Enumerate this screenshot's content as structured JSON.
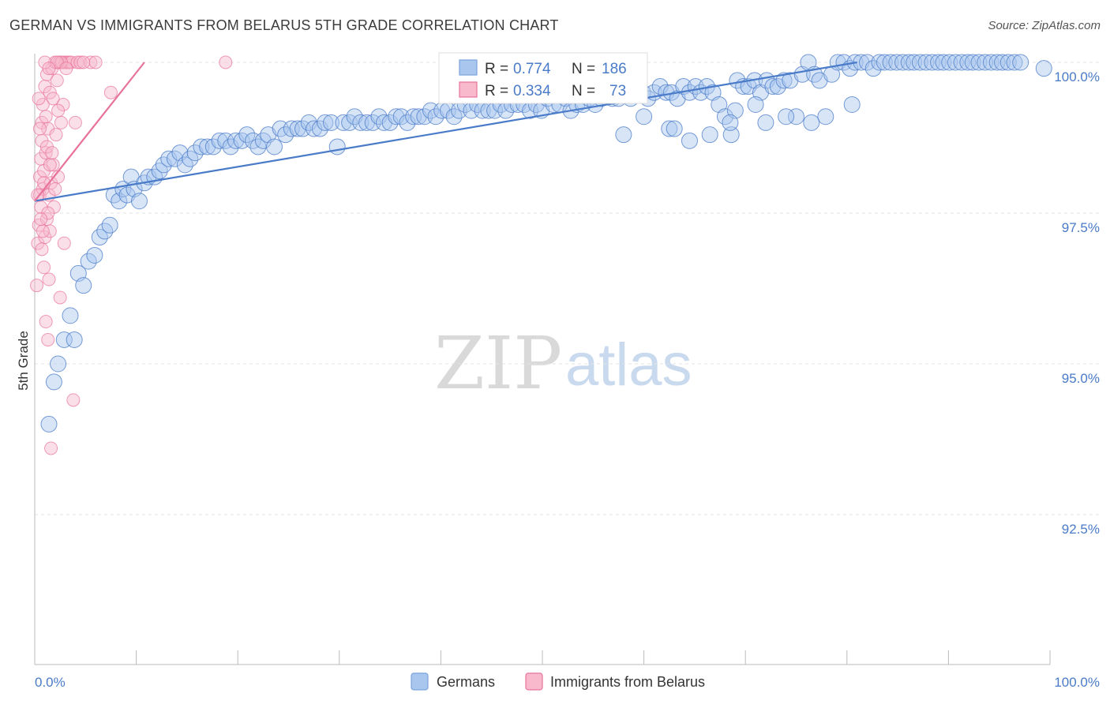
{
  "title": "GERMAN VS IMMIGRANTS FROM BELARUS 5TH GRADE CORRELATION CHART",
  "source": "Source: ZipAtlas.com",
  "watermark": {
    "zip": "ZIP",
    "atlas": "atlas"
  },
  "colors": {
    "blue": "#4a7bc8",
    "blue_fill": "#a9c6ee",
    "pink": "#e8739a",
    "pink_fill": "#f7b9cb",
    "grid": "#e3e3e3"
  },
  "legend": {
    "r_label": "R =",
    "n_label": "N =",
    "series": [
      {
        "name": "Germans",
        "r": "0.774",
        "n": "186"
      },
      {
        "name": "Immigrants from Belarus",
        "r": "0.334",
        "n": "73"
      }
    ]
  },
  "chart_data": {
    "type": "scatter",
    "title": "GERMAN VS IMMIGRANTS FROM BELARUS 5TH GRADE CORRELATION CHART",
    "xlabel": "",
    "ylabel": "5th Grade",
    "xlim": [
      0,
      100
    ],
    "ylim": [
      90.0,
      100.2
    ],
    "x_tick_labels": {
      "left": "0.0%",
      "right": "100.0%"
    },
    "y_ticks": [
      {
        "value": 100.0,
        "label": "100.0%"
      },
      {
        "value": 97.5,
        "label": "97.5%"
      },
      {
        "value": 95.0,
        "label": "95.0%"
      },
      {
        "value": 92.5,
        "label": "92.5%"
      }
    ],
    "grid": true,
    "series": [
      {
        "name": "Germans",
        "color": "#4a7bc8",
        "trend": {
          "x": [
            0,
            81
          ],
          "y": [
            97.7,
            100.0
          ]
        },
        "points": [
          [
            1.4,
            94.0
          ],
          [
            1.9,
            94.7
          ],
          [
            2.3,
            95.0
          ],
          [
            2.9,
            95.4
          ],
          [
            3.5,
            95.8
          ],
          [
            3.9,
            95.4
          ],
          [
            4.3,
            96.5
          ],
          [
            4.8,
            96.3
          ],
          [
            5.3,
            96.7
          ],
          [
            5.9,
            96.8
          ],
          [
            6.4,
            97.1
          ],
          [
            6.9,
            97.2
          ],
          [
            7.4,
            97.3
          ],
          [
            7.8,
            97.8
          ],
          [
            8.3,
            97.7
          ],
          [
            8.7,
            97.9
          ],
          [
            9.1,
            97.8
          ],
          [
            9.5,
            98.1
          ],
          [
            9.8,
            97.9
          ],
          [
            10.3,
            97.7
          ],
          [
            10.8,
            98.0
          ],
          [
            11.2,
            98.1
          ],
          [
            11.8,
            98.1
          ],
          [
            12.3,
            98.2
          ],
          [
            12.7,
            98.3
          ],
          [
            13.2,
            98.4
          ],
          [
            13.8,
            98.4
          ],
          [
            14.3,
            98.5
          ],
          [
            14.8,
            98.3
          ],
          [
            15.3,
            98.4
          ],
          [
            15.8,
            98.5
          ],
          [
            16.4,
            98.6
          ],
          [
            17.0,
            98.6
          ],
          [
            17.6,
            98.6
          ],
          [
            18.2,
            98.7
          ],
          [
            18.8,
            98.7
          ],
          [
            19.3,
            98.6
          ],
          [
            19.8,
            98.7
          ],
          [
            20.4,
            98.7
          ],
          [
            20.9,
            98.8
          ],
          [
            21.5,
            98.7
          ],
          [
            22.0,
            98.6
          ],
          [
            22.5,
            98.7
          ],
          [
            23.0,
            98.8
          ],
          [
            23.6,
            98.6
          ],
          [
            24.2,
            98.9
          ],
          [
            24.7,
            98.8
          ],
          [
            25.3,
            98.9
          ],
          [
            25.9,
            98.9
          ],
          [
            26.4,
            98.9
          ],
          [
            27.0,
            99.0
          ],
          [
            27.5,
            98.9
          ],
          [
            28.1,
            98.9
          ],
          [
            28.6,
            99.0
          ],
          [
            29.2,
            99.0
          ],
          [
            29.8,
            98.6
          ],
          [
            30.4,
            99.0
          ],
          [
            31.0,
            99.0
          ],
          [
            31.5,
            99.1
          ],
          [
            32.1,
            99.0
          ],
          [
            32.7,
            99.0
          ],
          [
            33.3,
            99.0
          ],
          [
            33.9,
            99.1
          ],
          [
            34.4,
            99.0
          ],
          [
            35.0,
            99.0
          ],
          [
            35.6,
            99.1
          ],
          [
            36.1,
            99.1
          ],
          [
            36.7,
            99.0
          ],
          [
            37.3,
            99.1
          ],
          [
            37.8,
            99.1
          ],
          [
            38.4,
            99.1
          ],
          [
            39.0,
            99.2
          ],
          [
            39.5,
            99.1
          ],
          [
            40.1,
            99.2
          ],
          [
            40.7,
            99.2
          ],
          [
            41.3,
            99.1
          ],
          [
            41.8,
            99.2
          ],
          [
            42.4,
            99.3
          ],
          [
            43.0,
            99.2
          ],
          [
            43.6,
            99.3
          ],
          [
            44.1,
            99.2
          ],
          [
            44.7,
            99.2
          ],
          [
            45.3,
            99.2
          ],
          [
            45.9,
            99.3
          ],
          [
            46.4,
            99.2
          ],
          [
            47.0,
            99.3
          ],
          [
            47.6,
            99.3
          ],
          [
            48.2,
            99.3
          ],
          [
            48.8,
            99.2
          ],
          [
            49.4,
            99.3
          ],
          [
            49.9,
            99.2
          ],
          [
            50.5,
            99.4
          ],
          [
            51.1,
            99.3
          ],
          [
            51.7,
            99.3
          ],
          [
            52.3,
            99.4
          ],
          [
            52.8,
            99.2
          ],
          [
            53.4,
            99.3
          ],
          [
            54.0,
            99.3
          ],
          [
            54.6,
            99.4
          ],
          [
            55.2,
            99.3
          ],
          [
            55.8,
            99.4
          ],
          [
            56.4,
            99.5
          ],
          [
            56.9,
            99.4
          ],
          [
            57.5,
            99.4
          ],
          [
            58.1,
            99.5
          ],
          [
            58.7,
            99.4
          ],
          [
            59.3,
            99.5
          ],
          [
            59.9,
            99.5
          ],
          [
            60.4,
            99.4
          ],
          [
            61.0,
            99.5
          ],
          [
            61.6,
            99.6
          ],
          [
            62.2,
            99.5
          ],
          [
            62.7,
            99.5
          ],
          [
            63.3,
            99.4
          ],
          [
            63.9,
            99.6
          ],
          [
            64.5,
            99.5
          ],
          [
            65.1,
            99.6
          ],
          [
            65.6,
            99.5
          ],
          [
            66.2,
            99.6
          ],
          [
            66.8,
            99.5
          ],
          [
            67.4,
            99.3
          ],
          [
            68.0,
            99.1
          ],
          [
            68.6,
            98.8
          ],
          [
            69.2,
            99.7
          ],
          [
            69.8,
            99.6
          ],
          [
            70.3,
            99.6
          ],
          [
            70.9,
            99.7
          ],
          [
            71.5,
            99.5
          ],
          [
            72.1,
            99.7
          ],
          [
            72.7,
            99.6
          ],
          [
            73.2,
            99.6
          ],
          [
            73.8,
            99.7
          ],
          [
            74.4,
            99.7
          ],
          [
            75.0,
            99.1
          ],
          [
            75.6,
            99.8
          ],
          [
            76.2,
            100.0
          ],
          [
            76.8,
            99.8
          ],
          [
            77.3,
            99.7
          ],
          [
            77.9,
            99.1
          ],
          [
            78.5,
            99.8
          ],
          [
            79.1,
            100.0
          ],
          [
            79.7,
            100.0
          ],
          [
            80.3,
            99.9
          ],
          [
            80.8,
            100.0
          ],
          [
            81.4,
            100.0
          ],
          [
            82.0,
            100.0
          ],
          [
            82.6,
            99.9
          ],
          [
            83.2,
            100.0
          ],
          [
            83.7,
            100.0
          ],
          [
            84.3,
            100.0
          ],
          [
            84.9,
            100.0
          ],
          [
            85.5,
            100.0
          ],
          [
            86.1,
            100.0
          ],
          [
            86.6,
            100.0
          ],
          [
            87.2,
            100.0
          ],
          [
            87.8,
            100.0
          ],
          [
            88.4,
            100.0
          ],
          [
            89.0,
            100.0
          ],
          [
            89.5,
            100.0
          ],
          [
            90.1,
            100.0
          ],
          [
            90.7,
            100.0
          ],
          [
            91.3,
            100.0
          ],
          [
            91.9,
            100.0
          ],
          [
            92.4,
            100.0
          ],
          [
            93.0,
            100.0
          ],
          [
            93.6,
            100.0
          ],
          [
            94.2,
            100.0
          ],
          [
            94.8,
            100.0
          ],
          [
            95.3,
            100.0
          ],
          [
            95.9,
            100.0
          ],
          [
            96.5,
            100.0
          ],
          [
            97.1,
            100.0
          ],
          [
            99.4,
            99.9
          ],
          [
            58.0,
            98.8
          ],
          [
            62.5,
            98.9
          ],
          [
            64.5,
            98.7
          ],
          [
            66.5,
            98.8
          ],
          [
            74.0,
            99.1
          ],
          [
            72.0,
            99.0
          ],
          [
            80.5,
            99.3
          ],
          [
            69.0,
            99.2
          ],
          [
            60.0,
            99.1
          ],
          [
            63.0,
            98.9
          ],
          [
            76.5,
            99.0
          ],
          [
            68.5,
            99.0
          ],
          [
            71.0,
            99.3
          ]
        ]
      },
      {
        "name": "Immigrants from Belarus",
        "color": "#e8739a",
        "trend": {
          "x": [
            0,
            10.8
          ],
          "y": [
            97.7,
            100.0
          ]
        },
        "points": [
          [
            0.2,
            96.3
          ],
          [
            0.3,
            97.0
          ],
          [
            0.4,
            97.3
          ],
          [
            0.5,
            97.8
          ],
          [
            0.5,
            98.1
          ],
          [
            0.6,
            98.4
          ],
          [
            0.6,
            97.6
          ],
          [
            0.7,
            98.7
          ],
          [
            0.7,
            99.0
          ],
          [
            0.8,
            99.3
          ],
          [
            0.8,
            97.9
          ],
          [
            0.9,
            98.2
          ],
          [
            0.9,
            96.6
          ],
          [
            1.0,
            97.1
          ],
          [
            1.0,
            99.6
          ],
          [
            1.1,
            98.5
          ],
          [
            1.1,
            95.7
          ],
          [
            1.2,
            99.8
          ],
          [
            1.2,
            97.4
          ],
          [
            1.3,
            98.9
          ],
          [
            1.3,
            95.4
          ],
          [
            1.4,
            97.8
          ],
          [
            1.4,
            96.4
          ],
          [
            1.5,
            99.5
          ],
          [
            1.5,
            97.2
          ],
          [
            1.6,
            98.0
          ],
          [
            1.6,
            93.6
          ],
          [
            1.7,
            99.9
          ],
          [
            1.8,
            98.3
          ],
          [
            1.9,
            97.6
          ],
          [
            2.0,
            100.0
          ],
          [
            2.1,
            98.8
          ],
          [
            2.2,
            99.7
          ],
          [
            2.3,
            98.1
          ],
          [
            2.4,
            100.0
          ],
          [
            2.5,
            96.1
          ],
          [
            2.6,
            99.0
          ],
          [
            2.7,
            100.0
          ],
          [
            2.8,
            99.3
          ],
          [
            2.9,
            97.0
          ],
          [
            3.0,
            100.0
          ],
          [
            3.2,
            100.0
          ],
          [
            3.4,
            100.0
          ],
          [
            3.6,
            100.0
          ],
          [
            3.8,
            94.4
          ],
          [
            4.0,
            99.0
          ],
          [
            4.2,
            100.0
          ],
          [
            4.5,
            100.0
          ],
          [
            5.5,
            100.0
          ],
          [
            6.0,
            100.0
          ],
          [
            7.5,
            99.5
          ],
          [
            18.8,
            100.0
          ],
          [
            0.5,
            98.9
          ],
          [
            0.8,
            97.2
          ],
          [
            1.2,
            98.6
          ],
          [
            1.5,
            98.3
          ],
          [
            1.8,
            99.4
          ],
          [
            2.0,
            97.9
          ],
          [
            2.3,
            99.2
          ],
          [
            0.4,
            99.4
          ],
          [
            0.9,
            98.0
          ],
          [
            1.1,
            99.1
          ],
          [
            1.3,
            97.5
          ],
          [
            1.7,
            98.5
          ],
          [
            2.6,
            100.0
          ],
          [
            0.6,
            97.4
          ],
          [
            1.0,
            100.0
          ],
          [
            0.3,
            97.8
          ],
          [
            2.2,
            100.0
          ],
          [
            1.4,
            99.9
          ],
          [
            0.7,
            96.9
          ],
          [
            3.1,
            99.9
          ],
          [
            4.8,
            100.0
          ]
        ]
      }
    ]
  },
  "bottom_legend": [
    {
      "label": "Germans"
    },
    {
      "label": "Immigrants from Belarus"
    }
  ]
}
